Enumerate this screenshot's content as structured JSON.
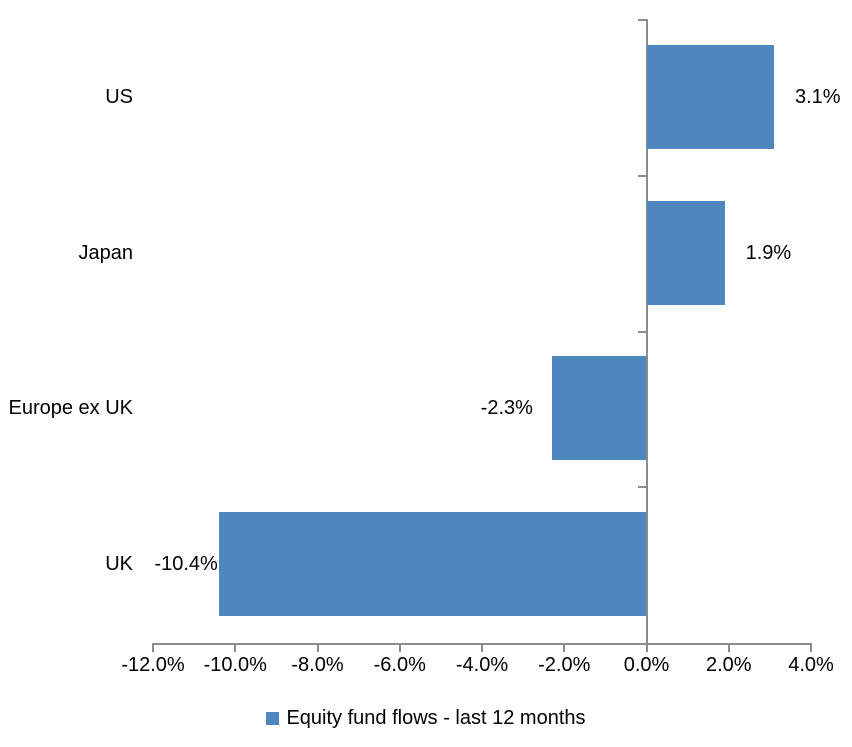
{
  "chart_data": {
    "type": "bar",
    "orientation": "horizontal",
    "title": "",
    "categories": [
      "US",
      "Japan",
      "Europe ex UK",
      "UK"
    ],
    "values": [
      3.1,
      1.9,
      -2.3,
      -10.4
    ],
    "data_labels": [
      "3.1%",
      "1.9%",
      "-2.3%",
      "-10.4%"
    ],
    "series": [
      {
        "name": "Equity fund flows - last 12 months",
        "values": [
          3.1,
          1.9,
          -2.3,
          -10.4
        ]
      }
    ],
    "x_tick_labels": [
      "-12.0%",
      "-10.0%",
      "-8.0%",
      "-6.0%",
      "-4.0%",
      "-2.0%",
      "0.0%",
      "2.0%",
      "4.0%"
    ],
    "x_tick_values": [
      -12,
      -10,
      -8,
      -6,
      -4,
      -2,
      0,
      2,
      4
    ],
    "xlim": [
      -12,
      4
    ],
    "grid": "off",
    "legend_position": "bottom",
    "bar_color": "#4E86BD",
    "axis_color": "#8C8C8C",
    "text_color": "#000000"
  },
  "legend": {
    "label": "Equity fund flows - last 12 months"
  }
}
